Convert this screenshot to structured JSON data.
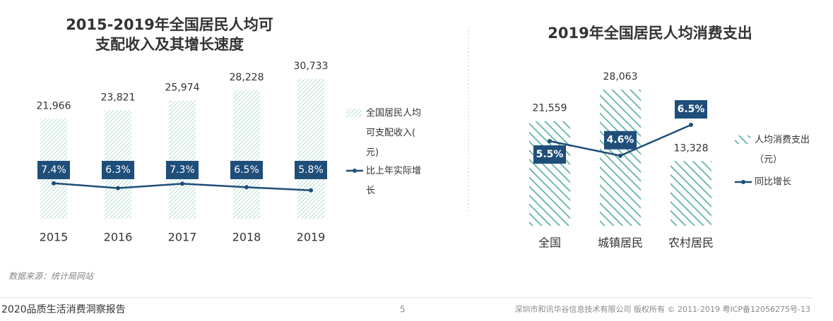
{
  "chart_data": [
    {
      "type": "bar_line",
      "title": "2015-2019年全国居民人均可支配收入及其增长速度",
      "categories": [
        "2015",
        "2016",
        "2017",
        "2018",
        "2019"
      ],
      "series": [
        {
          "name": "全国居民人均可支配收入(元)",
          "color": "#9fd0c5",
          "values": [
            21966,
            23821,
            25974,
            28228,
            30733
          ],
          "value_labels": [
            "21,966",
            "23,821",
            "25,974",
            "28,228",
            "30,733"
          ]
        },
        {
          "name": "比上年实际增长",
          "color": "#1f4e79",
          "axis": "y2",
          "values": [
            7.4,
            6.3,
            7.3,
            6.5,
            5.8
          ],
          "value_labels": [
            "7.4%",
            "6.3%",
            "7.3%",
            "6.5%",
            "5.8%"
          ]
        }
      ]
    },
    {
      "type": "bar_line",
      "title": "2019年全国居民人均消费支出",
      "categories": [
        "全国",
        "城镇居民",
        "农村居民"
      ],
      "series": [
        {
          "name": "人均消费支出（元）",
          "color": "#5fb3a2",
          "values": [
            21559,
            28063,
            13328
          ],
          "value_labels": [
            "21,559",
            "28,063",
            "13,328"
          ]
        },
        {
          "name": "同比增长",
          "color": "#1f4e79",
          "axis": "y2",
          "values": [
            5.5,
            4.6,
            6.5
          ],
          "value_labels": [
            "5.5%",
            "4.6%",
            "6.5%"
          ]
        }
      ]
    }
  ],
  "source": "数据来源：统计局网站",
  "footer": {
    "report": "2020品质生活消费洞察报告",
    "page": "5",
    "copyright": "深圳市和讯华谷信息技术有限公司 版权所有 © 2011-2019 粤ICP备12056275号-13"
  }
}
